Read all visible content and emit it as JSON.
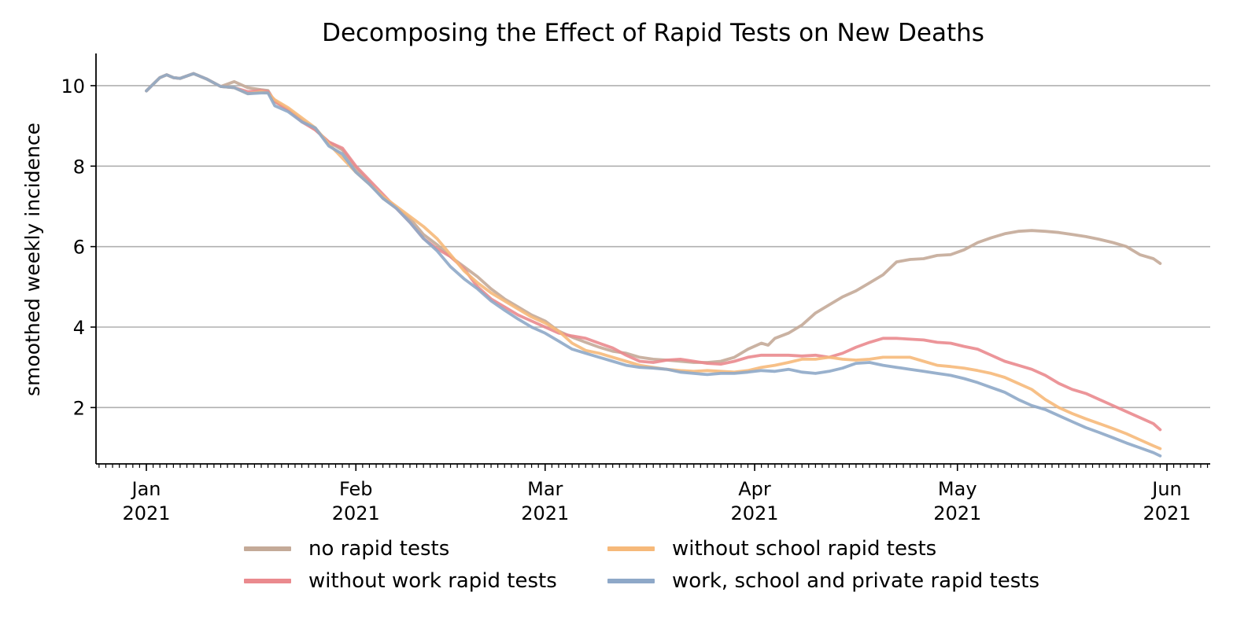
{
  "chart_data": {
    "type": "line",
    "title": "Decomposing the Effect of Rapid Tests on New Deaths",
    "xlabel": "",
    "ylabel": "smoothed weekly incidence",
    "ylim": [
      0.6,
      10.8
    ],
    "yticks": [
      2,
      4,
      6,
      8,
      10
    ],
    "x_start": "2021-01-01",
    "x_end_day": 150,
    "grid": "horizontal",
    "legend_position": "bottom",
    "xticks": [
      {
        "day": 0,
        "label": [
          "Jan",
          "2021"
        ]
      },
      {
        "day": 31,
        "label": [
          "Feb",
          "2021"
        ]
      },
      {
        "day": 59,
        "label": [
          "Mar",
          "2021"
        ]
      },
      {
        "day": 90,
        "label": [
          "Apr",
          "2021"
        ]
      },
      {
        "day": 120,
        "label": [
          "May",
          "2021"
        ]
      },
      {
        "day": 151,
        "label": [
          "Jun",
          "2021"
        ]
      }
    ],
    "series": [
      {
        "name": "no rapid tests",
        "color": "#c4aa98",
        "points": [
          [
            0,
            9.87
          ],
          [
            2,
            10.2
          ],
          [
            3,
            10.27
          ],
          [
            4,
            10.2
          ],
          [
            5,
            10.18
          ],
          [
            7,
            10.3
          ],
          [
            9,
            10.16
          ],
          [
            11,
            9.98
          ],
          [
            13,
            10.1
          ],
          [
            15,
            9.95
          ],
          [
            17,
            9.9
          ],
          [
            18,
            9.88
          ],
          [
            19,
            9.6
          ],
          [
            21,
            9.4
          ],
          [
            23,
            9.15
          ],
          [
            25,
            8.9
          ],
          [
            27,
            8.6
          ],
          [
            29,
            8.4
          ],
          [
            31,
            7.95
          ],
          [
            33,
            7.6
          ],
          [
            35,
            7.2
          ],
          [
            37,
            6.95
          ],
          [
            39,
            6.7
          ],
          [
            41,
            6.3
          ],
          [
            43,
            6.05
          ],
          [
            45,
            5.75
          ],
          [
            47,
            5.5
          ],
          [
            49,
            5.25
          ],
          [
            51,
            4.95
          ],
          [
            53,
            4.7
          ],
          [
            55,
            4.5
          ],
          [
            57,
            4.3
          ],
          [
            59,
            4.15
          ],
          [
            61,
            3.9
          ],
          [
            63,
            3.75
          ],
          [
            65,
            3.62
          ],
          [
            67,
            3.5
          ],
          [
            69,
            3.4
          ],
          [
            71,
            3.35
          ],
          [
            73,
            3.25
          ],
          [
            75,
            3.2
          ],
          [
            77,
            3.18
          ],
          [
            79,
            3.15
          ],
          [
            81,
            3.12
          ],
          [
            83,
            3.12
          ],
          [
            85,
            3.15
          ],
          [
            87,
            3.25
          ],
          [
            89,
            3.45
          ],
          [
            91,
            3.6
          ],
          [
            92,
            3.55
          ],
          [
            93,
            3.72
          ],
          [
            95,
            3.85
          ],
          [
            97,
            4.05
          ],
          [
            99,
            4.35
          ],
          [
            101,
            4.55
          ],
          [
            103,
            4.75
          ],
          [
            105,
            4.9
          ],
          [
            107,
            5.1
          ],
          [
            109,
            5.3
          ],
          [
            111,
            5.62
          ],
          [
            113,
            5.68
          ],
          [
            115,
            5.7
          ],
          [
            117,
            5.78
          ],
          [
            119,
            5.8
          ],
          [
            121,
            5.92
          ],
          [
            123,
            6.1
          ],
          [
            125,
            6.22
          ],
          [
            127,
            6.32
          ],
          [
            129,
            6.38
          ],
          [
            131,
            6.4
          ],
          [
            133,
            6.38
          ],
          [
            135,
            6.35
          ],
          [
            137,
            6.3
          ],
          [
            139,
            6.25
          ],
          [
            141,
            6.18
          ],
          [
            143,
            6.1
          ],
          [
            145,
            6.0
          ],
          [
            147,
            5.8
          ],
          [
            149,
            5.7
          ],
          [
            150,
            5.58
          ]
        ]
      },
      {
        "name": "without work rapid tests",
        "color": "#ea8a8e",
        "points": [
          [
            0,
            9.87
          ],
          [
            2,
            10.2
          ],
          [
            3,
            10.27
          ],
          [
            4,
            10.2
          ],
          [
            5,
            10.18
          ],
          [
            7,
            10.3
          ],
          [
            9,
            10.16
          ],
          [
            11,
            9.98
          ],
          [
            13,
            9.95
          ],
          [
            15,
            9.85
          ],
          [
            17,
            9.88
          ],
          [
            18,
            9.85
          ],
          [
            19,
            9.62
          ],
          [
            21,
            9.4
          ],
          [
            23,
            9.1
          ],
          [
            25,
            8.9
          ],
          [
            27,
            8.6
          ],
          [
            29,
            8.45
          ],
          [
            31,
            8.0
          ],
          [
            33,
            7.65
          ],
          [
            35,
            7.3
          ],
          [
            37,
            6.95
          ],
          [
            39,
            6.6
          ],
          [
            41,
            6.2
          ],
          [
            43,
            5.95
          ],
          [
            45,
            5.75
          ],
          [
            47,
            5.45
          ],
          [
            49,
            5.0
          ],
          [
            51,
            4.7
          ],
          [
            53,
            4.5
          ],
          [
            55,
            4.3
          ],
          [
            57,
            4.15
          ],
          [
            59,
            4.0
          ],
          [
            61,
            3.85
          ],
          [
            63,
            3.78
          ],
          [
            65,
            3.72
          ],
          [
            67,
            3.6
          ],
          [
            69,
            3.48
          ],
          [
            71,
            3.3
          ],
          [
            73,
            3.15
          ],
          [
            75,
            3.12
          ],
          [
            77,
            3.18
          ],
          [
            79,
            3.2
          ],
          [
            81,
            3.15
          ],
          [
            83,
            3.1
          ],
          [
            85,
            3.08
          ],
          [
            87,
            3.15
          ],
          [
            89,
            3.25
          ],
          [
            91,
            3.3
          ],
          [
            93,
            3.3
          ],
          [
            95,
            3.3
          ],
          [
            97,
            3.28
          ],
          [
            99,
            3.3
          ],
          [
            101,
            3.25
          ],
          [
            103,
            3.35
          ],
          [
            105,
            3.5
          ],
          [
            107,
            3.62
          ],
          [
            109,
            3.72
          ],
          [
            111,
            3.72
          ],
          [
            113,
            3.7
          ],
          [
            115,
            3.68
          ],
          [
            117,
            3.62
          ],
          [
            119,
            3.6
          ],
          [
            121,
            3.52
          ],
          [
            123,
            3.45
          ],
          [
            125,
            3.3
          ],
          [
            127,
            3.15
          ],
          [
            129,
            3.05
          ],
          [
            131,
            2.95
          ],
          [
            133,
            2.8
          ],
          [
            135,
            2.6
          ],
          [
            137,
            2.45
          ],
          [
            139,
            2.35
          ],
          [
            141,
            2.2
          ],
          [
            143,
            2.05
          ],
          [
            145,
            1.9
          ],
          [
            147,
            1.75
          ],
          [
            149,
            1.6
          ],
          [
            150,
            1.45
          ]
        ]
      },
      {
        "name": "without school rapid tests",
        "color": "#f6b97a",
        "points": [
          [
            0,
            9.87
          ],
          [
            2,
            10.2
          ],
          [
            3,
            10.27
          ],
          [
            4,
            10.2
          ],
          [
            5,
            10.18
          ],
          [
            7,
            10.3
          ],
          [
            9,
            10.16
          ],
          [
            11,
            9.98
          ],
          [
            13,
            9.95
          ],
          [
            15,
            9.8
          ],
          [
            17,
            9.85
          ],
          [
            18,
            9.82
          ],
          [
            19,
            9.65
          ],
          [
            21,
            9.45
          ],
          [
            23,
            9.2
          ],
          [
            25,
            8.95
          ],
          [
            27,
            8.55
          ],
          [
            29,
            8.2
          ],
          [
            31,
            7.85
          ],
          [
            33,
            7.55
          ],
          [
            35,
            7.25
          ],
          [
            37,
            7.0
          ],
          [
            39,
            6.75
          ],
          [
            41,
            6.5
          ],
          [
            43,
            6.2
          ],
          [
            45,
            5.8
          ],
          [
            47,
            5.4
          ],
          [
            49,
            5.1
          ],
          [
            51,
            4.85
          ],
          [
            53,
            4.65
          ],
          [
            55,
            4.45
          ],
          [
            57,
            4.25
          ],
          [
            59,
            4.1
          ],
          [
            61,
            3.9
          ],
          [
            63,
            3.6
          ],
          [
            65,
            3.42
          ],
          [
            67,
            3.35
          ],
          [
            69,
            3.25
          ],
          [
            71,
            3.15
          ],
          [
            73,
            3.05
          ],
          [
            75,
            3.0
          ],
          [
            77,
            2.95
          ],
          [
            79,
            2.92
          ],
          [
            81,
            2.9
          ],
          [
            83,
            2.92
          ],
          [
            85,
            2.9
          ],
          [
            87,
            2.88
          ],
          [
            89,
            2.92
          ],
          [
            91,
            3.0
          ],
          [
            93,
            3.05
          ],
          [
            95,
            3.12
          ],
          [
            97,
            3.2
          ],
          [
            99,
            3.2
          ],
          [
            101,
            3.25
          ],
          [
            103,
            3.2
          ],
          [
            105,
            3.18
          ],
          [
            107,
            3.2
          ],
          [
            109,
            3.25
          ],
          [
            111,
            3.25
          ],
          [
            113,
            3.25
          ],
          [
            115,
            3.15
          ],
          [
            117,
            3.05
          ],
          [
            119,
            3.02
          ],
          [
            121,
            2.98
          ],
          [
            123,
            2.92
          ],
          [
            125,
            2.85
          ],
          [
            127,
            2.75
          ],
          [
            129,
            2.6
          ],
          [
            131,
            2.45
          ],
          [
            133,
            2.2
          ],
          [
            135,
            2.0
          ],
          [
            137,
            1.85
          ],
          [
            139,
            1.72
          ],
          [
            141,
            1.6
          ],
          [
            143,
            1.48
          ],
          [
            145,
            1.35
          ],
          [
            147,
            1.2
          ],
          [
            149,
            1.05
          ],
          [
            150,
            0.98
          ]
        ]
      },
      {
        "name": "work, school and private rapid tests",
        "color": "#8ea8c8",
        "points": [
          [
            0,
            9.87
          ],
          [
            2,
            10.2
          ],
          [
            3,
            10.27
          ],
          [
            4,
            10.2
          ],
          [
            5,
            10.18
          ],
          [
            7,
            10.3
          ],
          [
            9,
            10.16
          ],
          [
            11,
            9.98
          ],
          [
            13,
            9.95
          ],
          [
            15,
            9.8
          ],
          [
            17,
            9.82
          ],
          [
            18,
            9.82
          ],
          [
            19,
            9.5
          ],
          [
            21,
            9.35
          ],
          [
            23,
            9.1
          ],
          [
            25,
            8.95
          ],
          [
            27,
            8.5
          ],
          [
            29,
            8.3
          ],
          [
            31,
            7.85
          ],
          [
            33,
            7.55
          ],
          [
            35,
            7.2
          ],
          [
            37,
            6.95
          ],
          [
            39,
            6.6
          ],
          [
            41,
            6.2
          ],
          [
            43,
            5.9
          ],
          [
            45,
            5.5
          ],
          [
            47,
            5.2
          ],
          [
            49,
            4.95
          ],
          [
            51,
            4.65
          ],
          [
            53,
            4.42
          ],
          [
            55,
            4.2
          ],
          [
            57,
            4.0
          ],
          [
            59,
            3.85
          ],
          [
            61,
            3.65
          ],
          [
            63,
            3.45
          ],
          [
            65,
            3.35
          ],
          [
            67,
            3.25
          ],
          [
            69,
            3.15
          ],
          [
            71,
            3.05
          ],
          [
            73,
            3.0
          ],
          [
            75,
            2.98
          ],
          [
            77,
            2.95
          ],
          [
            79,
            2.88
          ],
          [
            81,
            2.85
          ],
          [
            83,
            2.82
          ],
          [
            85,
            2.85
          ],
          [
            87,
            2.85
          ],
          [
            89,
            2.88
          ],
          [
            91,
            2.92
          ],
          [
            93,
            2.9
          ],
          [
            95,
            2.95
          ],
          [
            97,
            2.88
          ],
          [
            99,
            2.85
          ],
          [
            101,
            2.9
          ],
          [
            103,
            2.98
          ],
          [
            105,
            3.1
          ],
          [
            107,
            3.12
          ],
          [
            109,
            3.05
          ],
          [
            111,
            3.0
          ],
          [
            113,
            2.95
          ],
          [
            115,
            2.9
          ],
          [
            117,
            2.85
          ],
          [
            119,
            2.8
          ],
          [
            121,
            2.72
          ],
          [
            123,
            2.62
          ],
          [
            125,
            2.5
          ],
          [
            127,
            2.38
          ],
          [
            129,
            2.2
          ],
          [
            131,
            2.05
          ],
          [
            133,
            1.95
          ],
          [
            135,
            1.8
          ],
          [
            137,
            1.65
          ],
          [
            139,
            1.5
          ],
          [
            141,
            1.38
          ],
          [
            143,
            1.25
          ],
          [
            145,
            1.12
          ],
          [
            147,
            1.0
          ],
          [
            149,
            0.88
          ],
          [
            150,
            0.8
          ]
        ]
      }
    ]
  }
}
